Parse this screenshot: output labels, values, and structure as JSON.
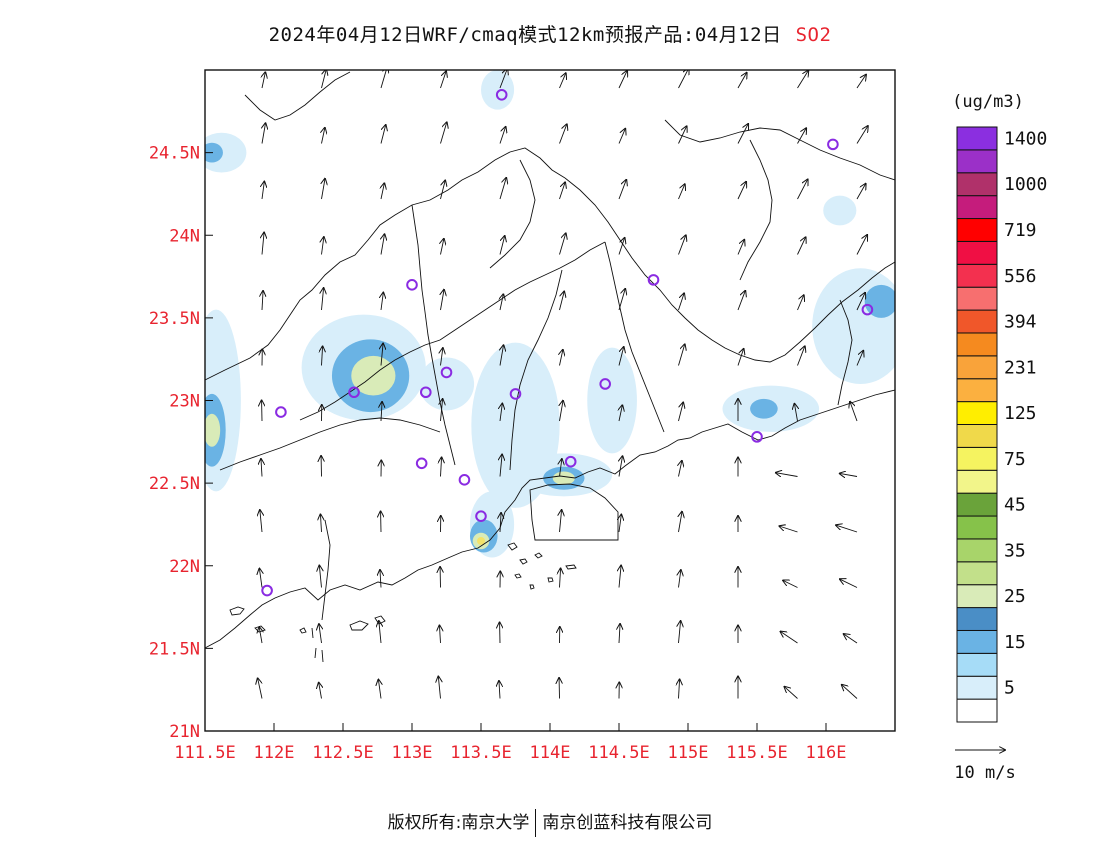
{
  "title": {
    "main": "2024年04月12日WRF/cmaq模式12km预报产品:04月12日",
    "species": "SO2"
  },
  "footer": {
    "copyright": "版权所有:南京大学",
    "company": "南京创蓝科技有限公司"
  },
  "map": {
    "lat_ticks": [
      "24.5N",
      "24N",
      "23.5N",
      "23N",
      "22.5N",
      "22N",
      "21.5N",
      "21N"
    ],
    "lon_ticks": [
      "111.5E",
      "112E",
      "112.5E",
      "113E",
      "113.5E",
      "114E",
      "114.5E",
      "115E",
      "115.5E",
      "116E"
    ],
    "lat_range": [
      21.0,
      25.0
    ],
    "lon_range": [
      111.5,
      116.5
    ],
    "station_color": "#8a2be2",
    "stations": [
      {
        "lon": 113.65,
        "lat": 24.85
      },
      {
        "lon": 116.05,
        "lat": 24.55
      },
      {
        "lon": 113.0,
        "lat": 23.7
      },
      {
        "lon": 114.75,
        "lat": 23.73
      },
      {
        "lon": 116.3,
        "lat": 23.55
      },
      {
        "lon": 112.58,
        "lat": 23.05
      },
      {
        "lon": 113.1,
        "lat": 23.05
      },
      {
        "lon": 113.25,
        "lat": 23.17
      },
      {
        "lon": 113.75,
        "lat": 23.04
      },
      {
        "lon": 114.4,
        "lat": 23.1
      },
      {
        "lon": 112.05,
        "lat": 22.93
      },
      {
        "lon": 115.5,
        "lat": 22.78
      },
      {
        "lon": 113.07,
        "lat": 22.62
      },
      {
        "lon": 113.38,
        "lat": 22.52
      },
      {
        "lon": 114.15,
        "lat": 22.63
      },
      {
        "lon": 113.5,
        "lat": 22.3
      },
      {
        "lon": 111.95,
        "lat": 21.85
      }
    ],
    "concentration_patches": [
      {
        "lon": 112.65,
        "lat": 23.2,
        "rlon": 0.45,
        "rlat": 0.32,
        "level": "5"
      },
      {
        "lon": 112.7,
        "lat": 23.15,
        "rlon": 0.28,
        "rlat": 0.22,
        "level": "15"
      },
      {
        "lon": 112.72,
        "lat": 23.15,
        "rlon": 0.16,
        "rlat": 0.12,
        "level": "25"
      },
      {
        "lon": 111.58,
        "lat": 23.0,
        "rlon": 0.18,
        "rlat": 0.55,
        "level": "5"
      },
      {
        "lon": 111.55,
        "lat": 22.82,
        "rlon": 0.1,
        "rlat": 0.22,
        "level": "15"
      },
      {
        "lon": 111.55,
        "lat": 22.82,
        "rlon": 0.06,
        "rlat": 0.1,
        "level": "25"
      },
      {
        "lon": 111.62,
        "lat": 24.5,
        "rlon": 0.18,
        "rlat": 0.12,
        "level": "5"
      },
      {
        "lon": 111.55,
        "lat": 24.5,
        "rlon": 0.08,
        "rlat": 0.06,
        "level": "15"
      },
      {
        "lon": 113.62,
        "lat": 24.88,
        "rlon": 0.12,
        "rlat": 0.12,
        "level": "5"
      },
      {
        "lon": 113.25,
        "lat": 23.1,
        "rlon": 0.2,
        "rlat": 0.16,
        "level": "5"
      },
      {
        "lon": 113.75,
        "lat": 22.85,
        "rlon": 0.32,
        "rlat": 0.5,
        "level": "5"
      },
      {
        "lon": 114.45,
        "lat": 23.0,
        "rlon": 0.18,
        "rlat": 0.32,
        "level": "5"
      },
      {
        "lon": 114.1,
        "lat": 22.55,
        "rlon": 0.35,
        "rlat": 0.13,
        "level": "5"
      },
      {
        "lon": 114.1,
        "lat": 22.53,
        "rlon": 0.15,
        "rlat": 0.07,
        "level": "15"
      },
      {
        "lon": 114.1,
        "lat": 22.53,
        "rlon": 0.08,
        "rlat": 0.04,
        "level": "25"
      },
      {
        "lon": 113.58,
        "lat": 22.25,
        "rlon": 0.16,
        "rlat": 0.2,
        "level": "5"
      },
      {
        "lon": 113.52,
        "lat": 22.18,
        "rlon": 0.1,
        "rlat": 0.1,
        "level": "15"
      },
      {
        "lon": 113.5,
        "lat": 22.15,
        "rlon": 0.06,
        "rlat": 0.05,
        "level": "25"
      },
      {
        "lon": 115.6,
        "lat": 22.95,
        "rlon": 0.35,
        "rlat": 0.14,
        "level": "5"
      },
      {
        "lon": 115.55,
        "lat": 22.95,
        "rlon": 0.1,
        "rlat": 0.06,
        "level": "15"
      },
      {
        "lon": 116.25,
        "lat": 23.45,
        "rlon": 0.35,
        "rlat": 0.35,
        "level": "5"
      },
      {
        "lon": 116.4,
        "lat": 23.6,
        "rlon": 0.12,
        "rlat": 0.1,
        "level": "15"
      },
      {
        "lon": 116.1,
        "lat": 24.15,
        "rlon": 0.12,
        "rlat": 0.09,
        "level": "5"
      }
    ],
    "hotspot": {
      "lon": 113.5,
      "lat": 22.15
    }
  },
  "colorbar": {
    "unit": "(ug/m3)",
    "colors": [
      "#ffffff",
      "#d8eefa",
      "#a6dcf7",
      "#6ab3e4",
      "#4a8ec6",
      "#d9ebb8",
      "#c2e08a",
      "#a8d46a",
      "#86c24a",
      "#6aa33a",
      "#f2f58a",
      "#f5f360",
      "#f0d94a",
      "#ffee00",
      "#fbb040",
      "#f9a33a",
      "#f58a1f",
      "#f0572a",
      "#f76f6f",
      "#f3304f",
      "#f00f44",
      "#ff0000",
      "#c51c7c",
      "#b0316a",
      "#9b30c8",
      "#8b2fe0"
    ],
    "labels": [
      "5",
      "15",
      "25",
      "35",
      "45",
      "75",
      "125",
      "231",
      "394",
      "556",
      "719",
      "1000",
      "1400"
    ],
    "wind_scale_label": "10 m/s"
  }
}
